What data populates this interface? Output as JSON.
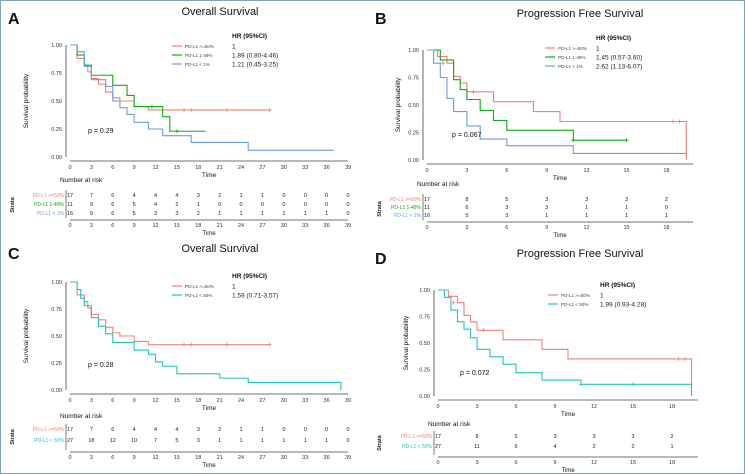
{
  "chart_data": [
    {
      "panel": "A",
      "type": "line",
      "title": "Overall Survival",
      "xlabel": "Time",
      "ylabel": "Survival probability",
      "xlim": [
        0,
        39
      ],
      "ylim": [
        0,
        1
      ],
      "x_ticks": [
        "0",
        "3",
        "6",
        "9",
        "12",
        "15",
        "18",
        "21",
        "24",
        "27",
        "30",
        "33",
        "36",
        "39"
      ],
      "y_ticks": [
        "0.00",
        "0.25",
        "0.50",
        "0.75",
        "1.00"
      ],
      "pvalue": "p = 0.29",
      "hr_title": "HR (95%CI)",
      "legend": [
        {
          "label": "PD-L1 >=50%",
          "hr": "1",
          "color": "#f0807a"
        },
        {
          "label": "PD-L1 1-49%",
          "hr": "1.89 (0.80-4.46)",
          "color": "#12a812"
        },
        {
          "label": "PD-L1 < 1%",
          "hr": "1.21 (0.45-3.25)",
          "color": "#6a9ee0"
        }
      ],
      "series": [
        {
          "name": "PD-L1 >=50%",
          "color": "#f0807a",
          "steps": [
            [
              0,
              1
            ],
            [
              1,
              0.88
            ],
            [
              2,
              0.82
            ],
            [
              2.5,
              0.76
            ],
            [
              3,
              0.7
            ],
            [
              4,
              0.65
            ],
            [
              5,
              0.58
            ],
            [
              6,
              0.53
            ],
            [
              7,
              0.5
            ],
            [
              9,
              0.45
            ],
            [
              11,
              0.42
            ],
            [
              28,
              0.42
            ]
          ],
          "censor": [
            [
              16,
              0.42
            ],
            [
              17,
              0.42
            ],
            [
              22,
              0.42
            ],
            [
              28,
              0.42
            ]
          ]
        },
        {
          "name": "PD-L1 1-49%",
          "color": "#12a812",
          "steps": [
            [
              0,
              1
            ],
            [
              1,
              0.91
            ],
            [
              2,
              0.82
            ],
            [
              3,
              0.73
            ],
            [
              6,
              0.64
            ],
            [
              8,
              0.55
            ],
            [
              9,
              0.45
            ],
            [
              13,
              0.36
            ],
            [
              14,
              0.23
            ],
            [
              19,
              0.23
            ]
          ],
          "censor": [
            [
              11.5,
              0.45
            ],
            [
              15,
              0.23
            ]
          ]
        },
        {
          "name": "PD-L1 < 1%",
          "color": "#6a9ee0",
          "steps": [
            [
              0,
              1
            ],
            [
              1,
              0.94
            ],
            [
              2,
              0.81
            ],
            [
              3,
              0.69
            ],
            [
              5,
              0.63
            ],
            [
              6,
              0.5
            ],
            [
              7,
              0.44
            ],
            [
              8,
              0.38
            ],
            [
              9,
              0.31
            ],
            [
              11,
              0.25
            ],
            [
              13,
              0.19
            ],
            [
              17,
              0.13
            ],
            [
              25,
              0.06
            ],
            [
              37,
              0.06
            ]
          ],
          "censor": []
        }
      ],
      "risk_table": {
        "header": "Number at risk",
        "strata_label": "Strata",
        "rows": [
          {
            "label": "PD-L1 >=50%",
            "color": "#f0807a",
            "values": [
              "17",
              "7",
              "6",
              "4",
              "4",
              "4",
              "3",
              "2",
              "1",
              "1",
              "0",
              "0",
              "0",
              "0"
            ]
          },
          {
            "label": "PD-L1 1-49%",
            "color": "#12a812",
            "values": [
              "11",
              "9",
              "6",
              "5",
              "4",
              "2",
              "1",
              "0",
              "0",
              "0",
              "0",
              "0",
              "0",
              "0"
            ]
          },
          {
            "label": "PD-L1 < 1%",
            "color": "#6a9ee0",
            "values": [
              "16",
              "9",
              "6",
              "5",
              "3",
              "3",
              "2",
              "1",
              "1",
              "1",
              "1",
              "1",
              "1",
              "0"
            ]
          }
        ],
        "x_ticks": [
          "0",
          "3",
          "6",
          "9",
          "12",
          "15",
          "18",
          "21",
          "24",
          "27",
          "30",
          "33",
          "36",
          "39"
        ]
      }
    },
    {
      "panel": "B",
      "type": "line",
      "title": "Progression Free Survival",
      "xlabel": "Time",
      "ylabel": "Survival probability",
      "xlim": [
        0,
        20
      ],
      "ylim": [
        0,
        1
      ],
      "x_ticks": [
        "0",
        "3",
        "6",
        "9",
        "12",
        "15",
        "18"
      ],
      "y_ticks": [
        "0.00",
        "0.25",
        "0.50",
        "0.75",
        "1.00"
      ],
      "pvalue": "p = 0.067",
      "hr_title": "HR (95%CI)",
      "legend": [
        {
          "label": "PD-L1 >=50%",
          "hr": "1",
          "color": "#f0807a"
        },
        {
          "label": "PD-L1 1-49%",
          "hr": "1.45 (0.57-3.60)",
          "color": "#12a812"
        },
        {
          "label": "PD-L1 < 1%",
          "hr": "2.62 (1.13-6.07)",
          "color": "#6a9ee0"
        }
      ],
      "series": [
        {
          "name": "PD-L1 >=50%",
          "color": "#f0807a",
          "steps": [
            [
              0,
              1
            ],
            [
              0.8,
              0.94
            ],
            [
              1.5,
              0.88
            ],
            [
              2,
              0.76
            ],
            [
              2.5,
              0.7
            ],
            [
              3,
              0.62
            ],
            [
              5,
              0.53
            ],
            [
              8,
              0.44
            ],
            [
              10,
              0.35
            ],
            [
              19.5,
              0.35
            ],
            [
              19.5,
              0
            ]
          ],
          "censor": [
            [
              1.2,
              0.88
            ],
            [
              3.5,
              0.62
            ],
            [
              18.5,
              0.35
            ],
            [
              19,
              0.35
            ]
          ]
        },
        {
          "name": "PD-L1 1-49%",
          "color": "#12a812",
          "steps": [
            [
              0,
              1
            ],
            [
              1,
              0.91
            ],
            [
              2,
              0.73
            ],
            [
              2.5,
              0.64
            ],
            [
              3,
              0.55
            ],
            [
              4,
              0.45
            ],
            [
              5,
              0.36
            ],
            [
              6,
              0.27
            ],
            [
              11,
              0.18
            ],
            [
              15,
              0.18
            ]
          ],
          "censor": [
            [
              11,
              0.18
            ],
            [
              15,
              0.18
            ]
          ]
        },
        {
          "name": "PD-L1 < 1%",
          "color": "#6a9ee0",
          "steps": [
            [
              0,
              1
            ],
            [
              0.5,
              0.88
            ],
            [
              1,
              0.75
            ],
            [
              1.5,
              0.56
            ],
            [
              2,
              0.44
            ],
            [
              3,
              0.31
            ],
            [
              4,
              0.19
            ],
            [
              6,
              0.13
            ],
            [
              11,
              0.06
            ],
            [
              19.5,
              0.06
            ]
          ],
          "censor": []
        }
      ],
      "risk_table": {
        "header": "Number at risk",
        "strata_label": "Strata",
        "rows": [
          {
            "label": "PD-L1 >=50%",
            "color": "#f0807a",
            "values": [
              "17",
              "8",
              "5",
              "3",
              "3",
              "3",
              "2"
            ]
          },
          {
            "label": "PD-L1 1-49%",
            "color": "#12a812",
            "values": [
              "11",
              "6",
              "3",
              "3",
              "1",
              "1",
              "0"
            ]
          },
          {
            "label": "PD-L1 < 1%",
            "color": "#6a9ee0",
            "values": [
              "16",
              "5",
              "3",
              "1",
              "1",
              "1",
              "1"
            ]
          }
        ],
        "x_ticks": [
          "0",
          "3",
          "6",
          "9",
          "12",
          "15",
          "18"
        ]
      }
    },
    {
      "panel": "C",
      "type": "line",
      "title": "Overall Survival",
      "xlabel": "Time",
      "ylabel": "Survival probability",
      "xlim": [
        0,
        39
      ],
      "ylim": [
        0,
        1
      ],
      "x_ticks": [
        "0",
        "3",
        "6",
        "9",
        "12",
        "15",
        "18",
        "21",
        "24",
        "27",
        "30",
        "33",
        "36",
        "39"
      ],
      "y_ticks": [
        "0.00",
        "0.25",
        "0.50",
        "0.75",
        "1.00"
      ],
      "pvalue": "p = 0.28",
      "hr_title": "HR (95%CI)",
      "legend": [
        {
          "label": "PD-L1 >=50%",
          "hr": "1",
          "color": "#f0807a"
        },
        {
          "label": "PD-L1 < 50%",
          "hr": "1.59 (0.71-3.57)",
          "color": "#22c4c0"
        }
      ],
      "series": [
        {
          "name": "PD-L1 >=50%",
          "color": "#f0807a",
          "steps": [
            [
              0,
              1
            ],
            [
              1,
              0.88
            ],
            [
              2,
              0.82
            ],
            [
              2.5,
              0.76
            ],
            [
              3,
              0.7
            ],
            [
              4,
              0.65
            ],
            [
              5,
              0.58
            ],
            [
              6,
              0.53
            ],
            [
              7,
              0.5
            ],
            [
              9,
              0.45
            ],
            [
              11,
              0.42
            ],
            [
              28,
              0.42
            ]
          ],
          "censor": [
            [
              16,
              0.42
            ],
            [
              17,
              0.42
            ],
            [
              22,
              0.42
            ],
            [
              28,
              0.42
            ]
          ]
        },
        {
          "name": "PD-L1 < 50%",
          "color": "#22c4c0",
          "steps": [
            [
              0,
              1
            ],
            [
              1,
              0.93
            ],
            [
              1.5,
              0.85
            ],
            [
              2,
              0.78
            ],
            [
              3,
              0.67
            ],
            [
              4,
              0.59
            ],
            [
              5,
              0.52
            ],
            [
              6,
              0.44
            ],
            [
              9,
              0.37
            ],
            [
              11,
              0.33
            ],
            [
              12,
              0.26
            ],
            [
              13,
              0.22
            ],
            [
              15,
              0.15
            ],
            [
              21,
              0.11
            ],
            [
              25,
              0.07
            ],
            [
              38,
              0.07
            ],
            [
              38,
              0
            ]
          ],
          "censor": []
        }
      ],
      "risk_table": {
        "header": "Number at risk",
        "strata_label": "Strata",
        "rows": [
          {
            "label": "PD-L1 >=50%",
            "color": "#f0807a",
            "values": [
              "17",
              "7",
              "6",
              "4",
              "4",
              "4",
              "3",
              "2",
              "1",
              "1",
              "0",
              "0",
              "0",
              "0"
            ]
          },
          {
            "label": "PD-L1 < 50%",
            "color": "#22c4c0",
            "values": [
              "27",
              "18",
              "12",
              "10",
              "7",
              "5",
              "3",
              "1",
              "1",
              "1",
              "1",
              "1",
              "1",
              "0"
            ]
          }
        ],
        "x_ticks": [
          "0",
          "3",
          "6",
          "9",
          "12",
          "15",
          "18",
          "21",
          "24",
          "27",
          "30",
          "33",
          "36",
          "39"
        ]
      }
    },
    {
      "panel": "D",
      "type": "line",
      "title": "Progression Free Survival",
      "xlabel": "Time",
      "ylabel": "Survival probability",
      "xlim": [
        0,
        20
      ],
      "ylim": [
        0,
        1
      ],
      "x_ticks": [
        "0",
        "3",
        "6",
        "9",
        "12",
        "15",
        "18"
      ],
      "y_ticks": [
        "0.00",
        "0.25",
        "0.50",
        "0.75",
        "1.00"
      ],
      "pvalue": "p = 0.072",
      "hr_title": "HR (95%CI)",
      "legend": [
        {
          "label": "PD-L1 >=50%",
          "hr": "1",
          "color": "#f0807a"
        },
        {
          "label": "PD-L1 < 50%",
          "hr": "1.99 (0.93-4.28)",
          "color": "#22c4c0"
        }
      ],
      "series": [
        {
          "name": "PD-L1 >=50%",
          "color": "#f0807a",
          "steps": [
            [
              0,
              1
            ],
            [
              0.8,
              0.94
            ],
            [
              1.5,
              0.88
            ],
            [
              2,
              0.76
            ],
            [
              2.5,
              0.7
            ],
            [
              3,
              0.62
            ],
            [
              5,
              0.53
            ],
            [
              8,
              0.44
            ],
            [
              10,
              0.35
            ],
            [
              19.5,
              0.35
            ],
            [
              19.5,
              0
            ]
          ],
          "censor": [
            [
              1.2,
              0.88
            ],
            [
              3.5,
              0.62
            ],
            [
              18.5,
              0.35
            ],
            [
              19,
              0.35
            ]
          ]
        },
        {
          "name": "PD-L1 < 50%",
          "color": "#22c4c0",
          "steps": [
            [
              0,
              1
            ],
            [
              0.5,
              0.93
            ],
            [
              1,
              0.81
            ],
            [
              1.5,
              0.7
            ],
            [
              2,
              0.63
            ],
            [
              2.5,
              0.55
            ],
            [
              3,
              0.44
            ],
            [
              4,
              0.37
            ],
            [
              5,
              0.3
            ],
            [
              6,
              0.22
            ],
            [
              8,
              0.15
            ],
            [
              11,
              0.11
            ],
            [
              19.5,
              0.11
            ],
            [
              19.5,
              0
            ]
          ],
          "censor": [
            [
              11,
              0.11
            ],
            [
              15,
              0.11
            ]
          ]
        }
      ],
      "risk_table": {
        "header": "Number at risk",
        "strata_label": "Strata",
        "rows": [
          {
            "label": "PD-L1 >=50%",
            "color": "#f0807a",
            "values": [
              "17",
              "8",
              "5",
              "3",
              "3",
              "3",
              "2"
            ]
          },
          {
            "label": "PD-L1 < 50%",
            "color": "#22c4c0",
            "values": [
              "27",
              "11",
              "6",
              "4",
              "2",
              "2",
              "1"
            ]
          }
        ],
        "x_ticks": [
          "0",
          "3",
          "6",
          "9",
          "12",
          "15",
          "18"
        ]
      }
    }
  ]
}
